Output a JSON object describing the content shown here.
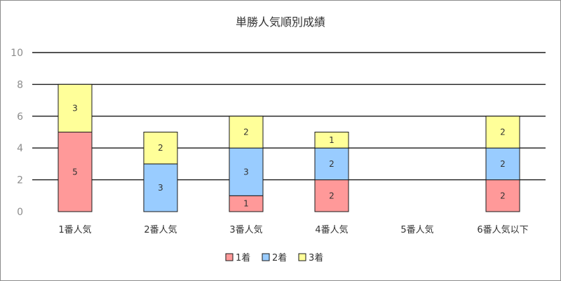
{
  "chart_data": {
    "type": "bar",
    "stacked": true,
    "title": "単勝人気順別成績",
    "categories": [
      "1番人気",
      "2番人気",
      "3番人気",
      "4番人気",
      "5番人気",
      "6番人気以下"
    ],
    "series": [
      {
        "name": "1着",
        "color": "#ff9999",
        "values": [
          5,
          0,
          1,
          2,
          0,
          2
        ]
      },
      {
        "name": "2着",
        "color": "#99ccff",
        "values": [
          0,
          3,
          3,
          2,
          0,
          2
        ]
      },
      {
        "name": "3着",
        "color": "#ffff99",
        "values": [
          3,
          2,
          2,
          1,
          0,
          2
        ]
      }
    ],
    "ylim": [
      0,
      10
    ],
    "yticks": [
      0,
      2,
      4,
      6,
      8,
      10
    ],
    "grid": true,
    "legend_position": "bottom"
  }
}
